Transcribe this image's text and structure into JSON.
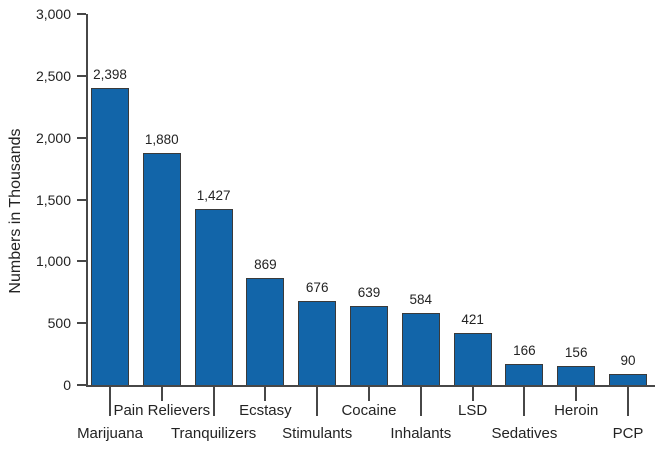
{
  "chart_data": {
    "type": "bar",
    "title": "",
    "xlabel": "",
    "ylabel": "Numbers in Thousands",
    "ylim": [
      0,
      3000
    ],
    "grid": false,
    "legend": null,
    "y_tick_values": [
      0,
      500,
      1000,
      1500,
      2000,
      2500,
      3000
    ],
    "y_tick_labels": [
      "0",
      "500",
      "1,000",
      "1,500",
      "2,000",
      "2,500",
      "3,000"
    ],
    "categories": [
      "Marijuana",
      "Pain Relievers",
      "Tranquilizers",
      "Ecstasy",
      "Stimulants",
      "Cocaine",
      "Inhalants",
      "LSD",
      "Sedatives",
      "Heroin",
      "PCP"
    ],
    "values": [
      2398,
      1880,
      1427,
      869,
      676,
      639,
      584,
      421,
      166,
      156,
      90
    ],
    "value_labels": [
      "2,398",
      "1,880",
      "1,427",
      "869",
      "676",
      "639",
      "584",
      "421",
      "166",
      "156",
      "90"
    ],
    "label_rows": [
      "lower",
      "upper",
      "lower",
      "upper",
      "lower",
      "upper",
      "lower",
      "upper",
      "lower",
      "upper",
      "lower"
    ],
    "colors": {
      "bar_fill": "#1265A9",
      "bar_border": "#3A3A3A",
      "axis": "#474747",
      "text": "#232323"
    }
  }
}
